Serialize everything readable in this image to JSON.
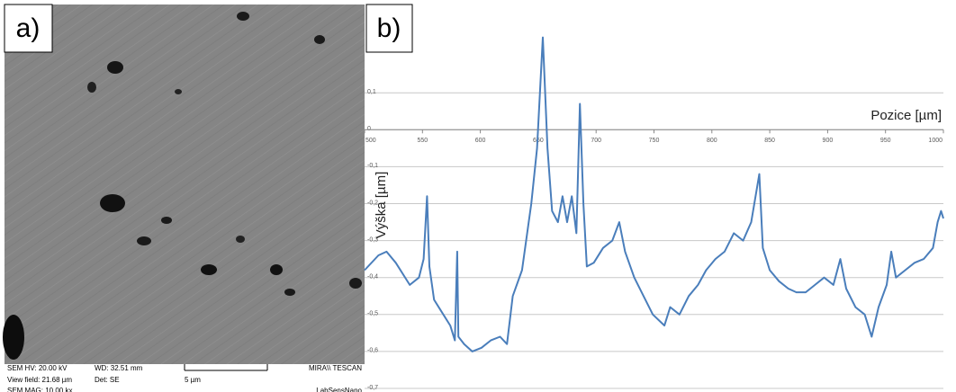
{
  "panel_a": {
    "label": "a)",
    "info": [
      {
        "text": "SEM HV: 20.00 kV",
        "col": 0,
        "row": 0
      },
      {
        "text": "WD: 32.51 mm",
        "col": 1,
        "row": 0
      },
      {
        "text": "MIRA\\\\ TESCAN",
        "col": 3,
        "row": 0
      },
      {
        "text": "View field: 21.68 µm",
        "col": 0,
        "row": 1
      },
      {
        "text": "Det: SE",
        "col": 1,
        "row": 1
      },
      {
        "text": "5 µm",
        "col": 2,
        "row": 1
      },
      {
        "text": "SEM MAG: 10.00 kx",
        "col": 0,
        "row": 2
      },
      {
        "text": "LabSensNano",
        "col": 3,
        "row": 2
      }
    ]
  },
  "chart_data": {
    "type": "line",
    "panel_label": "b)",
    "x_label": "Pozice [µm]",
    "y_label": "Výška [µm]",
    "color": "#4a7ebb",
    "grid": true,
    "x": [
      500,
      512,
      519,
      527,
      539,
      547,
      551,
      554,
      556,
      560,
      566,
      574,
      578,
      580,
      581,
      586,
      593,
      601,
      609,
      617,
      623,
      628,
      636,
      644,
      649,
      654,
      658,
      662,
      667,
      671,
      675,
      679,
      683,
      686,
      689,
      692,
      698,
      706,
      714,
      720,
      725,
      733,
      741,
      749,
      759,
      764,
      772,
      780,
      788,
      795,
      803,
      811,
      819,
      827,
      834,
      841,
      844,
      850,
      858,
      866,
      873,
      881,
      889,
      897,
      905,
      911,
      916,
      924,
      932,
      938,
      944,
      951,
      955,
      959,
      967,
      975,
      983,
      991,
      995,
      998,
      1000
    ],
    "values": [
      -0.38,
      -0.34,
      -0.33,
      -0.36,
      -0.42,
      -0.4,
      -0.35,
      -0.18,
      -0.37,
      -0.46,
      -0.49,
      -0.53,
      -0.57,
      -0.33,
      -0.56,
      -0.58,
      -0.6,
      -0.59,
      -0.57,
      -0.56,
      -0.58,
      -0.45,
      -0.38,
      -0.2,
      -0.05,
      0.25,
      -0.05,
      -0.22,
      -0.25,
      -0.18,
      -0.25,
      -0.18,
      -0.28,
      0.07,
      -0.2,
      -0.37,
      -0.36,
      -0.32,
      -0.3,
      -0.25,
      -0.33,
      -0.4,
      -0.45,
      -0.5,
      -0.53,
      -0.48,
      -0.5,
      -0.45,
      -0.42,
      -0.38,
      -0.35,
      -0.33,
      -0.28,
      -0.3,
      -0.25,
      -0.12,
      -0.32,
      -0.38,
      -0.41,
      -0.43,
      -0.44,
      -0.44,
      -0.42,
      -0.4,
      -0.42,
      -0.35,
      -0.43,
      -0.48,
      -0.5,
      -0.56,
      -0.48,
      -0.42,
      -0.33,
      -0.4,
      -0.38,
      -0.36,
      -0.35,
      -0.32,
      -0.25,
      -0.22,
      -0.24
    ],
    "xlim": [
      500,
      1000
    ],
    "xticks": [
      500,
      550,
      600,
      650,
      700,
      750,
      800,
      850,
      900,
      950,
      1000
    ],
    "ylim": [
      -0.7,
      0.3
    ],
    "yticks": [
      {
        "value": 0.1,
        "label": "0,1"
      },
      0,
      {
        "value": -0.1,
        "label": "-0,1"
      },
      {
        "value": -0.2,
        "label": "-0,2"
      },
      {
        "value": -0.3,
        "label": "-0,3"
      },
      {
        "value": -0.4,
        "label": "-0,4"
      },
      {
        "value": -0.5,
        "label": "-0,5"
      },
      {
        "value": -0.6,
        "label": "-0,6"
      },
      {
        "value": -0.7,
        "label": "-0,7"
      }
    ]
  }
}
